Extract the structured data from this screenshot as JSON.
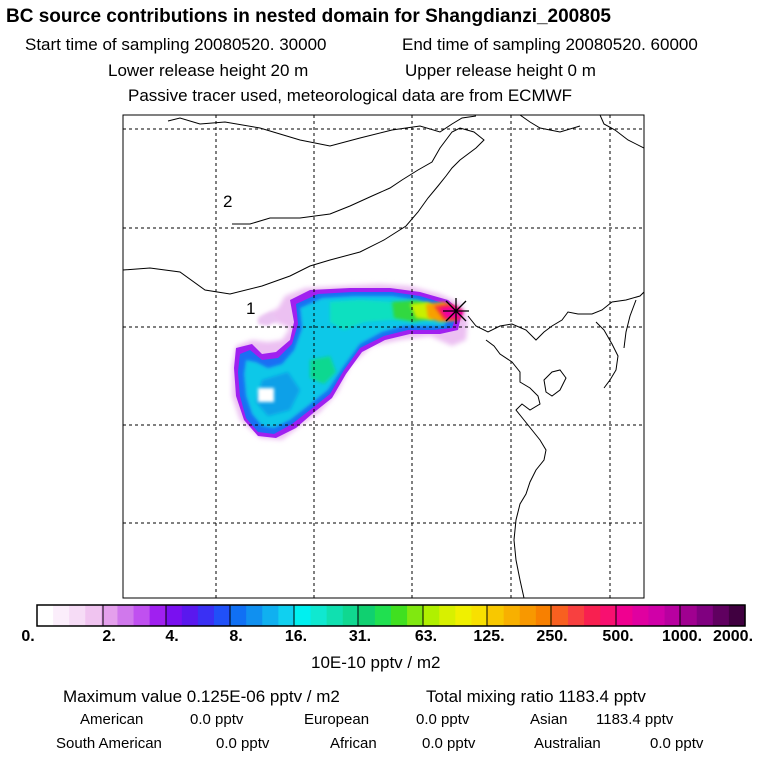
{
  "title": "BC  source contributions in nested domain for Shangdianzi_200805",
  "header": {
    "start_label": "Start time of sampling 20080520. 30000",
    "end_label": "End time of sampling 20080520. 60000",
    "lower_label": "Lower release height   20 m",
    "upper_label": "Upper release height    0 m",
    "tracer_label": "Passive tracer used, meteorological data are from ECMWF"
  },
  "map": {
    "region_labels": [
      "1",
      "2"
    ],
    "receptor_marker": "star-marker"
  },
  "colorbar": {
    "unit_label": "10E-10 pptv / m2",
    "tick_labels": [
      "0.",
      "2.",
      "4.",
      "8.",
      "16.",
      "31.",
      "63.",
      "125.",
      "250.",
      "500.",
      "1000.",
      "2000."
    ],
    "colors": [
      "#ffffff",
      "#fbeefb",
      "#f6dcf6",
      "#f0c4f0",
      "#e4a0ec",
      "#d078ec",
      "#c050f0",
      "#a020f0",
      "#7a10f0",
      "#5a18ee",
      "#3a30f4",
      "#2050f8",
      "#1070f4",
      "#1090f0",
      "#10b0f0",
      "#10d0f0",
      "#00f0f0",
      "#10e8d0",
      "#10e0b0",
      "#10d890",
      "#10d070",
      "#20e050",
      "#40e020",
      "#80e810",
      "#b0f000",
      "#d8f000",
      "#f0f000",
      "#f8e000",
      "#f8c800",
      "#f8b000",
      "#f89800",
      "#f88000",
      "#f86020",
      "#f84040",
      "#f82050",
      "#f81070",
      "#f00090",
      "#e000a0",
      "#d000a8",
      "#b800a0",
      "#a00090",
      "#800080",
      "#600060",
      "#400040"
    ]
  },
  "footer": {
    "max_value": "Maximum value  0.125E-06 pptv / m2",
    "total_mixing": "Total mixing ratio     1183.4 pptv",
    "american_label": "American",
    "american_value": "0.0 pptv",
    "european_label": "European",
    "european_value": "0.0 pptv",
    "asian_label": "Asian",
    "asian_value": "1183.4 pptv",
    "south_american_label": "South American",
    "south_american_value": "0.0 pptv",
    "african_label": "African",
    "african_value": "0.0 pptv",
    "australian_label": "Australian",
    "australian_value": "0.0 pptv"
  },
  "chart_data": {
    "type": "heatmap",
    "title": "BC  source contributions in nested domain for Shangdianzi_200805",
    "legend_ticks": [
      0,
      2,
      4,
      8,
      16,
      31,
      63,
      125,
      250,
      500,
      1000,
      2000
    ],
    "legend_unit": "10E-10 pptv / m2",
    "grid": true,
    "max_value": "0.125E-06 pptv / m2",
    "total_mixing_ratio_pptv": 1183.4,
    "region_contributions_pptv": {
      "American": 0.0,
      "European": 0.0,
      "Asian": 1183.4,
      "South American": 0.0,
      "African": 0.0,
      "Australian": 0.0
    }
  }
}
